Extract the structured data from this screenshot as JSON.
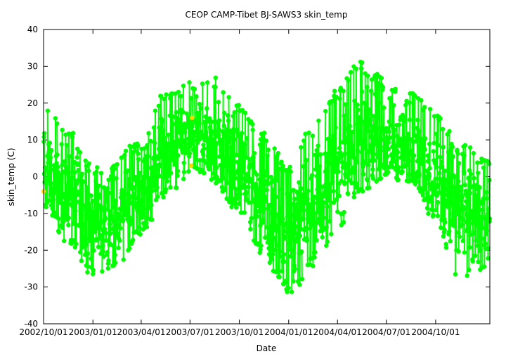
{
  "chart_data": {
    "type": "scatter",
    "title": "CEOP CAMP-Tibet BJ-SAWS3  skin_temp",
    "xlabel": "Date",
    "ylabel": "skin_temp (C)",
    "ylim": [
      -40,
      40
    ],
    "xlim": [
      "2002-10-01",
      "2005-01-10"
    ],
    "y_ticks": [
      -40,
      -30,
      -20,
      -10,
      0,
      10,
      20,
      30,
      40
    ],
    "x_ticks": [
      "2002/10/01",
      "2003/01/01",
      "2003/04/01",
      "2003/07/01",
      "2003/10/01",
      "2004/01/01",
      "2004/04/01",
      "2004/07/01",
      "2004/10/01"
    ],
    "grid": false,
    "series": [
      {
        "color": "#00ff00",
        "seasonal_mean": [
          {
            "x": "2002-10-01",
            "y": 0
          },
          {
            "x": "2002-11-15",
            "y": -5
          },
          {
            "x": "2003-01-01",
            "y": -12
          },
          {
            "x": "2003-02-15",
            "y": -11
          },
          {
            "x": "2003-04-01",
            "y": -2
          },
          {
            "x": "2003-05-15",
            "y": 6
          },
          {
            "x": "2003-07-01",
            "y": 11
          },
          {
            "x": "2003-08-15",
            "y": 10
          },
          {
            "x": "2003-10-01",
            "y": 3
          },
          {
            "x": "2003-11-15",
            "y": -6
          },
          {
            "x": "2004-01-01",
            "y": -14
          },
          {
            "x": "2004-02-15",
            "y": -9
          },
          {
            "x": "2004-04-01",
            "y": 2
          },
          {
            "x": "2004-05-15",
            "y": 10
          },
          {
            "x": "2004-07-01",
            "y": 10
          },
          {
            "x": "2004-08-15",
            "y": 8
          },
          {
            "x": "2004-10-01",
            "y": 0
          },
          {
            "x": "2004-11-15",
            "y": -9
          },
          {
            "x": "2005-01-10",
            "y": -11
          }
        ],
        "upper_envelope": [
          {
            "x": "2002-10-01",
            "y": 20
          },
          {
            "x": "2002-11-15",
            "y": 14
          },
          {
            "x": "2003-01-01",
            "y": 3
          },
          {
            "x": "2003-02-15",
            "y": 5
          },
          {
            "x": "2003-04-01",
            "y": 12
          },
          {
            "x": "2003-05-15",
            "y": 24
          },
          {
            "x": "2003-07-01",
            "y": 26
          },
          {
            "x": "2003-08-15",
            "y": 27
          },
          {
            "x": "2003-10-01",
            "y": 20
          },
          {
            "x": "2003-11-15",
            "y": 12
          },
          {
            "x": "2004-01-01",
            "y": 3
          },
          {
            "x": "2004-02-15",
            "y": 14
          },
          {
            "x": "2004-04-01",
            "y": 24
          },
          {
            "x": "2004-05-15",
            "y": 32
          },
          {
            "x": "2004-07-01",
            "y": 27
          },
          {
            "x": "2004-08-15",
            "y": 23
          },
          {
            "x": "2004-10-01",
            "y": 18
          },
          {
            "x": "2004-11-15",
            "y": 9
          },
          {
            "x": "2005-01-10",
            "y": 5
          }
        ],
        "lower_envelope": [
          {
            "x": "2002-10-01",
            "y": -8
          },
          {
            "x": "2002-11-15",
            "y": -18
          },
          {
            "x": "2003-01-01",
            "y": -27
          },
          {
            "x": "2003-02-15",
            "y": -24
          },
          {
            "x": "2003-04-01",
            "y": -16
          },
          {
            "x": "2003-05-15",
            "y": -6
          },
          {
            "x": "2003-07-01",
            "y": 0
          },
          {
            "x": "2003-08-15",
            "y": -2
          },
          {
            "x": "2003-10-01",
            "y": -10
          },
          {
            "x": "2003-11-15",
            "y": -22
          },
          {
            "x": "2004-01-01",
            "y": -33
          },
          {
            "x": "2004-02-15",
            "y": -25
          },
          {
            "x": "2004-04-01",
            "y": -14
          },
          {
            "x": "2004-05-15",
            "y": -4
          },
          {
            "x": "2004-07-01",
            "y": 0
          },
          {
            "x": "2004-08-15",
            "y": -2
          },
          {
            "x": "2004-10-01",
            "y": -12
          },
          {
            "x": "2004-11-15",
            "y": -30
          },
          {
            "x": "2005-01-10",
            "y": -24
          }
        ]
      },
      {
        "color": "#ffd700",
        "points": [
          {
            "x": "2002-10-01",
            "y": -4
          },
          {
            "x": "2003-07-03",
            "y": 3
          },
          {
            "x": "2003-07-05",
            "y": 16
          }
        ]
      }
    ]
  }
}
